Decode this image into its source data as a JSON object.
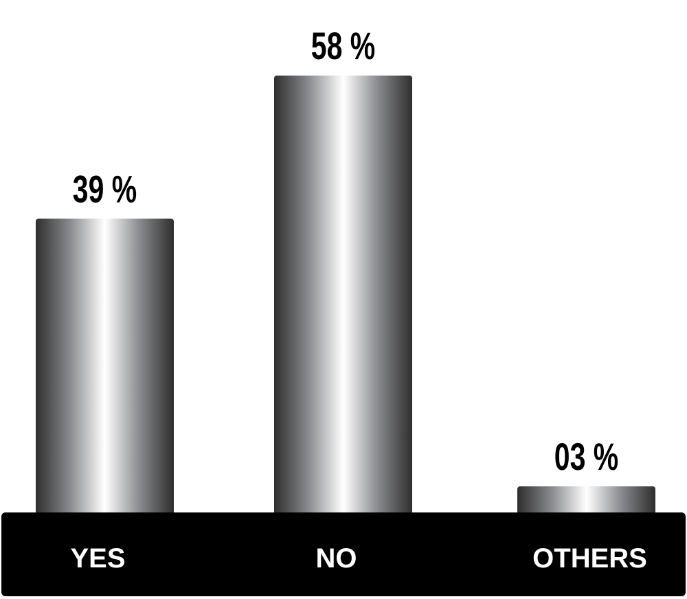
{
  "chart_data": {
    "type": "bar",
    "title": "",
    "xlabel": "",
    "ylabel": "",
    "categories": [
      "YES",
      "NO",
      "OTHERS"
    ],
    "values": [
      39,
      58,
      3
    ],
    "data_labels": [
      "39 %",
      "58 %",
      "03 %"
    ],
    "unit": "%",
    "ylim": [
      0,
      58
    ],
    "grid": false,
    "legend": "none",
    "colors": {
      "bar_dark": "#2e2e2e",
      "bar_light": "#ffffff",
      "base": "#000000",
      "category_text": "#ffffff",
      "label_text": "#000000"
    }
  }
}
